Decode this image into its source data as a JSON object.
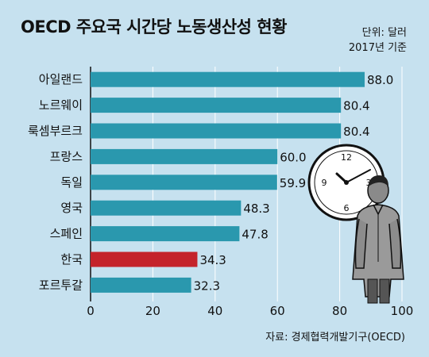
{
  "title": "OECD 주요국 시간당 노동생산성 현황",
  "unit_line1": "단위: 달러",
  "unit_line2": "2017년 기준",
  "source": "자료: 경제협력개발기구(OECD)",
  "chart_data": {
    "type": "bar",
    "orientation": "horizontal",
    "categories": [
      "아일랜드",
      "노르웨이",
      "룩셈부르크",
      "프랑스",
      "독일",
      "영국",
      "스페인",
      "한국",
      "포르투갈"
    ],
    "values": [
      88.0,
      80.4,
      80.4,
      60.0,
      59.9,
      48.3,
      47.8,
      34.3,
      32.3
    ],
    "value_labels": [
      "88.0",
      "80.4",
      "80.4",
      "60.0",
      "59.9",
      "48.3",
      "47.8",
      "34.3",
      "32.3"
    ],
    "xlim": [
      0,
      100
    ],
    "xticks": [
      "0",
      "20",
      "40",
      "60",
      "80",
      "100"
    ],
    "grid": true,
    "bar_color": "#2a98ae",
    "highlight_color": "#c4232b",
    "highlight_category": "한국",
    "grid_color": "#ffffff"
  }
}
